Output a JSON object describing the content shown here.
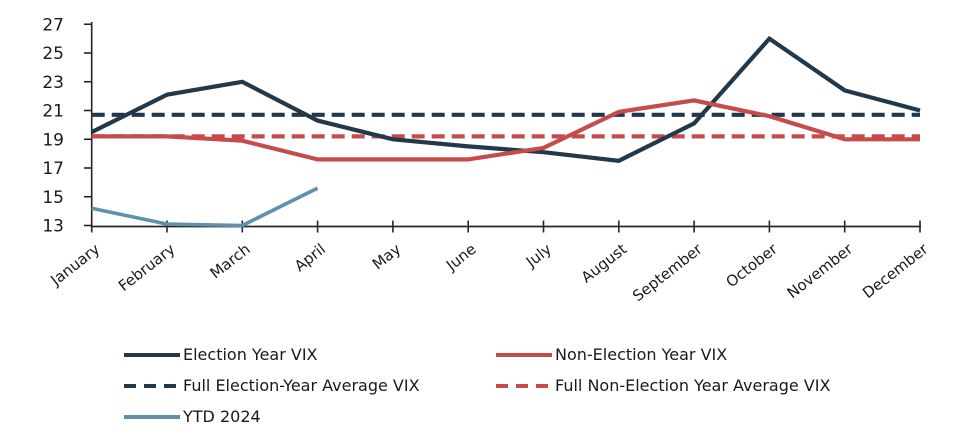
{
  "chart_data": {
    "type": "line",
    "title": "",
    "xlabel": "",
    "ylabel": "",
    "categories": [
      "January",
      "February",
      "March",
      "April",
      "May",
      "June",
      "July",
      "August",
      "September",
      "October",
      "November",
      "December"
    ],
    "y_axis": {
      "min": 13,
      "max": 27,
      "step": 2,
      "ticks": [
        13,
        15,
        17,
        19,
        21,
        23,
        25,
        27
      ]
    },
    "ylim": [
      13,
      27
    ],
    "grid": "off",
    "legend_position": "bottom",
    "colors": {
      "election": "#21394a",
      "non_election": "#c64b4b",
      "ytd": "#6090ab",
      "axis": "#262626"
    },
    "series": [
      {
        "key": "full-election-year-average",
        "name": "Full Election-Year Average VIX",
        "color": "#21394a",
        "style": "dashed",
        "type": "constant",
        "value": 20.7
      },
      {
        "key": "full-non-election-year-average",
        "name": "Full Non-Election Year Average VIX",
        "color": "#c64b4b",
        "style": "dashed",
        "type": "constant",
        "value": 19.2
      },
      {
        "key": "election-year-vix",
        "name": "Election Year VIX",
        "color": "#21394a",
        "style": "solid",
        "type": "line",
        "values": [
          19.5,
          22.1,
          23.0,
          20.3,
          19.0,
          18.5,
          18.1,
          17.5,
          20.1,
          26.0,
          22.4,
          21.0
        ]
      },
      {
        "key": "non-election-year-vix",
        "name": "Non-Election Year VIX",
        "color": "#c64b4b",
        "style": "solid",
        "type": "line",
        "values": [
          19.2,
          19.2,
          18.9,
          17.6,
          17.6,
          17.6,
          18.4,
          20.9,
          21.7,
          20.6,
          19.0,
          19.0
        ]
      },
      {
        "key": "ytd-2024",
        "name": "YTD 2024",
        "color": "#6090ab",
        "style": "solid",
        "type": "line",
        "thin": true,
        "values": [
          14.2,
          13.1,
          13.0,
          15.6
        ]
      }
    ]
  },
  "legend": {
    "items": [
      {
        "label": "Election Year VIX",
        "color": "#21394a",
        "style": "solid"
      },
      {
        "label": "Non-Election Year VIX",
        "color": "#c64b4b",
        "style": "solid"
      },
      {
        "label": "Full Election-Year Average VIX",
        "color": "#21394a",
        "style": "dashed"
      },
      {
        "label": "Full Non-Election Year Average VIX",
        "color": "#c64b4b",
        "style": "dashed"
      },
      {
        "label": "YTD 2024",
        "color": "#6090ab",
        "style": "solid"
      }
    ]
  }
}
